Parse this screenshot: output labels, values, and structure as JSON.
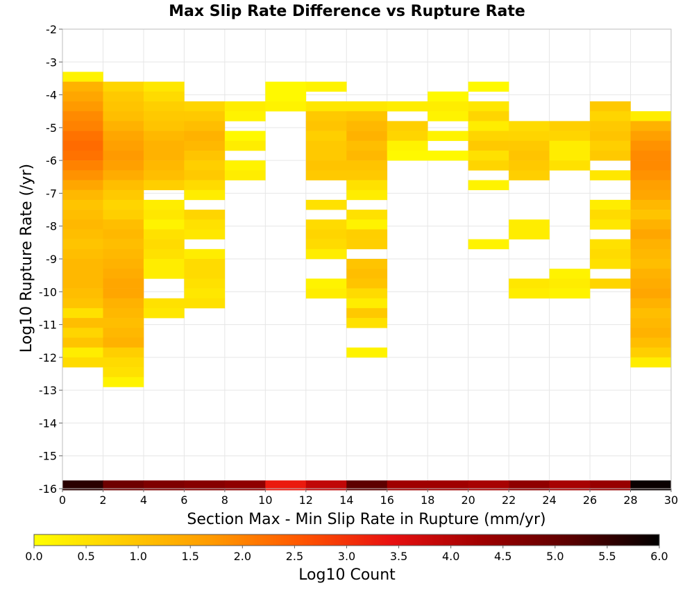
{
  "chart_data": {
    "type": "heatmap",
    "title": "Max Slip Rate Difference vs Rupture Rate",
    "xlabel": "Section Max - Min Slip Rate in Rupture (mm/yr)",
    "ylabel": "Log10 Rupture Rate (/yr)",
    "xlim": [
      0,
      30
    ],
    "ylim": [
      -16,
      -2
    ],
    "x_ticks": [
      "0",
      "2",
      "4",
      "6",
      "8",
      "10",
      "12",
      "14",
      "16",
      "18",
      "20",
      "22",
      "24",
      "26",
      "28",
      "30"
    ],
    "y_ticks": [
      "-2",
      "-3",
      "-4",
      "-5",
      "-6",
      "-7",
      "-8",
      "-9",
      "-10",
      "-11",
      "-12",
      "-13",
      "-14",
      "-15",
      "-16"
    ],
    "x_bin_width": 2,
    "y_bin_height": 0.3,
    "grid": true,
    "colorbar": {
      "label": "Log10 Count",
      "range": [
        0,
        6
      ],
      "ticks": [
        "0.0",
        "0.5",
        "1.0",
        "1.5",
        "2.0",
        "2.5",
        "3.0",
        "3.5",
        "4.0",
        "4.5",
        "5.0",
        "5.5",
        "6.0"
      ],
      "stops": [
        "#ffff00",
        "#ffcc00",
        "#ff9900",
        "#ff5500",
        "#e81010",
        "#a00000",
        "#5a0000",
        "#000000"
      ]
    },
    "columns": [
      {
        "x": 1,
        "cells": [
          [
            -3.45,
            0.2
          ],
          [
            -3.75,
            1.3
          ],
          [
            -4.05,
            1.5
          ],
          [
            -4.35,
            1.7
          ],
          [
            -4.65,
            1.9
          ],
          [
            -4.95,
            2.0
          ],
          [
            -5.25,
            2.2
          ],
          [
            -5.55,
            2.3
          ],
          [
            -5.85,
            2.2
          ],
          [
            -6.15,
            2.0
          ],
          [
            -6.45,
            1.8
          ],
          [
            -6.75,
            1.5
          ],
          [
            -7.05,
            1.2
          ],
          [
            -7.35,
            1.0
          ],
          [
            -7.65,
            1.1
          ],
          [
            -7.95,
            1.2
          ],
          [
            -8.25,
            1.1
          ],
          [
            -8.55,
            1.0
          ],
          [
            -8.85,
            1.1
          ],
          [
            -9.15,
            1.2
          ],
          [
            -9.45,
            1.2
          ],
          [
            -9.75,
            1.2
          ],
          [
            -10.05,
            1.1
          ],
          [
            -10.35,
            1.0
          ],
          [
            -10.65,
            0.5
          ],
          [
            -10.95,
            1.1
          ],
          [
            -11.25,
            0.7
          ],
          [
            -11.55,
            1.0
          ],
          [
            -11.85,
            0.3
          ],
          [
            -12.15,
            0.6
          ]
        ]
      },
      {
        "x": 3,
        "cells": [
          [
            -3.75,
            0.7
          ],
          [
            -4.05,
            0.9
          ],
          [
            -4.35,
            1.0
          ],
          [
            -4.65,
            1.1
          ],
          [
            -4.95,
            1.3
          ],
          [
            -5.25,
            1.5
          ],
          [
            -5.55,
            1.6
          ],
          [
            -5.85,
            1.7
          ],
          [
            -6.15,
            1.6
          ],
          [
            -6.45,
            1.4
          ],
          [
            -6.75,
            1.1
          ],
          [
            -7.05,
            0.9
          ],
          [
            -7.35,
            0.7
          ],
          [
            -7.65,
            0.8
          ],
          [
            -7.95,
            1.1
          ],
          [
            -8.25,
            1.2
          ],
          [
            -8.55,
            1.1
          ],
          [
            -8.85,
            1.2
          ],
          [
            -9.15,
            1.3
          ],
          [
            -9.45,
            1.4
          ],
          [
            -9.75,
            1.5
          ],
          [
            -10.05,
            1.5
          ],
          [
            -10.35,
            1.3
          ],
          [
            -10.65,
            1.2
          ],
          [
            -10.95,
            1.1
          ],
          [
            -11.25,
            1.2
          ],
          [
            -11.55,
            1.3
          ],
          [
            -11.85,
            0.8
          ],
          [
            -12.15,
            0.6
          ],
          [
            -12.45,
            0.5
          ],
          [
            -12.75,
            0.2
          ]
        ]
      },
      {
        "x": 5,
        "cells": [
          [
            -3.75,
            0.4
          ],
          [
            -4.05,
            0.6
          ],
          [
            -4.35,
            0.8
          ],
          [
            -4.65,
            0.9
          ],
          [
            -4.95,
            1.0
          ],
          [
            -5.25,
            1.2
          ],
          [
            -5.55,
            1.3
          ],
          [
            -5.85,
            1.3
          ],
          [
            -6.15,
            1.2
          ],
          [
            -6.45,
            1.1
          ],
          [
            -6.75,
            0.8
          ],
          [
            -7.35,
            0.3
          ],
          [
            -7.65,
            0.4
          ],
          [
            -7.95,
            0.2
          ],
          [
            -8.25,
            0.5
          ],
          [
            -8.55,
            0.6
          ],
          [
            -8.85,
            0.5
          ],
          [
            -9.15,
            0.3
          ],
          [
            -9.45,
            0.3
          ],
          [
            -10.35,
            0.5
          ],
          [
            -10.65,
            0.4
          ]
        ]
      },
      {
        "x": 7,
        "cells": [
          [
            -4.35,
            0.7
          ],
          [
            -4.65,
            0.9
          ],
          [
            -4.95,
            1.1
          ],
          [
            -5.25,
            1.3
          ],
          [
            -5.55,
            1.2
          ],
          [
            -5.85,
            1.0
          ],
          [
            -6.15,
            0.8
          ],
          [
            -6.45,
            0.9
          ],
          [
            -6.75,
            0.6
          ],
          [
            -7.05,
            0.3
          ],
          [
            -7.65,
            0.7
          ],
          [
            -7.95,
            0.5
          ],
          [
            -8.25,
            0.4
          ],
          [
            -8.85,
            0.3
          ],
          [
            -9.15,
            0.6
          ],
          [
            -9.45,
            0.6
          ],
          [
            -9.75,
            0.5
          ],
          [
            -10.05,
            0.4
          ],
          [
            -10.35,
            0.5
          ]
        ]
      },
      {
        "x": 9,
        "cells": [
          [
            -4.35,
            0.3
          ],
          [
            -4.65,
            0.2
          ],
          [
            -5.25,
            0.1
          ],
          [
            -5.55,
            0.3
          ],
          [
            -6.15,
            0.2
          ],
          [
            -6.45,
            0.3
          ]
        ]
      },
      {
        "x": 11,
        "cells": [
          [
            -3.75,
            0.1
          ],
          [
            -4.05,
            0.1
          ],
          [
            -4.35,
            0.2
          ]
        ]
      },
      {
        "x": 13,
        "cells": [
          [
            -3.75,
            0.2
          ],
          [
            -4.35,
            0.4
          ],
          [
            -4.65,
            0.9
          ],
          [
            -4.95,
            1.0
          ],
          [
            -5.25,
            0.8
          ],
          [
            -5.55,
            0.9
          ],
          [
            -5.85,
            0.9
          ],
          [
            -6.15,
            1.0
          ],
          [
            -6.45,
            0.9
          ],
          [
            -7.35,
            0.5
          ],
          [
            -7.95,
            0.6
          ],
          [
            -8.25,
            0.7
          ],
          [
            -8.55,
            0.6
          ],
          [
            -8.85,
            0.3
          ],
          [
            -9.75,
            0.2
          ],
          [
            -10.05,
            0.3
          ]
        ]
      },
      {
        "x": 15,
        "cells": [
          [
            -4.35,
            0.4
          ],
          [
            -4.65,
            1.0
          ],
          [
            -4.95,
            1.2
          ],
          [
            -5.25,
            1.3
          ],
          [
            -5.55,
            1.1
          ],
          [
            -5.85,
            1.2
          ],
          [
            -6.15,
            1.0
          ],
          [
            -6.45,
            0.9
          ],
          [
            -6.75,
            0.5
          ],
          [
            -7.05,
            0.3
          ],
          [
            -7.65,
            0.5
          ],
          [
            -7.95,
            0.2
          ],
          [
            -8.25,
            0.8
          ],
          [
            -8.55,
            0.8
          ],
          [
            -9.15,
            1.0
          ],
          [
            -9.45,
            1.1
          ],
          [
            -9.75,
            1.0
          ],
          [
            -10.05,
            0.6
          ],
          [
            -10.35,
            0.3
          ],
          [
            -10.65,
            0.9
          ],
          [
            -10.95,
            0.5
          ],
          [
            -11.85,
            0.2
          ]
        ]
      },
      {
        "x": 17,
        "cells": [
          [
            -4.35,
            0.3
          ],
          [
            -4.95,
            0.8
          ],
          [
            -5.25,
            0.7
          ],
          [
            -5.55,
            0.2
          ],
          [
            -5.85,
            0.1
          ]
        ]
      },
      {
        "x": 19,
        "cells": [
          [
            -4.05,
            0.1
          ],
          [
            -4.35,
            0.3
          ],
          [
            -4.65,
            0.2
          ],
          [
            -5.25,
            0.2
          ],
          [
            -5.85,
            0.1
          ]
        ]
      },
      {
        "x": 21,
        "cells": [
          [
            -3.75,
            0.1
          ],
          [
            -4.35,
            0.4
          ],
          [
            -4.65,
            0.7
          ],
          [
            -4.95,
            0.3
          ],
          [
            -5.25,
            0.7
          ],
          [
            -5.55,
            0.9
          ],
          [
            -5.85,
            0.5
          ],
          [
            -6.15,
            0.7
          ],
          [
            -6.75,
            0.2
          ],
          [
            -8.55,
            0.2
          ]
        ]
      },
      {
        "x": 23,
        "cells": [
          [
            -4.95,
            0.6
          ],
          [
            -5.25,
            0.7
          ],
          [
            -5.55,
            0.9
          ],
          [
            -5.85,
            1.0
          ],
          [
            -6.15,
            0.9
          ],
          [
            -6.45,
            0.8
          ],
          [
            -7.95,
            0.3
          ],
          [
            -8.25,
            0.3
          ],
          [
            -9.75,
            0.4
          ],
          [
            -10.05,
            0.3
          ]
        ]
      },
      {
        "x": 25,
        "cells": [
          [
            -4.95,
            0.8
          ],
          [
            -5.25,
            0.7
          ],
          [
            -5.55,
            0.3
          ],
          [
            -5.85,
            0.3
          ],
          [
            -6.15,
            0.5
          ],
          [
            -9.45,
            0.2
          ],
          [
            -9.75,
            0.3
          ],
          [
            -10.05,
            0.2
          ]
        ]
      },
      {
        "x": 27,
        "cells": [
          [
            -4.35,
            0.9
          ],
          [
            -4.65,
            0.7
          ],
          [
            -4.95,
            0.9
          ],
          [
            -5.25,
            1.0
          ],
          [
            -5.55,
            0.8
          ],
          [
            -5.85,
            0.9
          ],
          [
            -6.45,
            0.4
          ],
          [
            -7.35,
            0.3
          ],
          [
            -7.65,
            0.6
          ],
          [
            -7.95,
            0.4
          ],
          [
            -8.55,
            0.5
          ],
          [
            -8.85,
            0.6
          ],
          [
            -9.15,
            0.5
          ],
          [
            -9.75,
            0.7
          ]
        ]
      },
      {
        "x": 29,
        "cells": [
          [
            -4.65,
            0.3
          ],
          [
            -4.95,
            1.3
          ],
          [
            -5.25,
            1.6
          ],
          [
            -5.55,
            1.8
          ],
          [
            -5.85,
            1.9
          ],
          [
            -6.15,
            1.9
          ],
          [
            -6.45,
            1.8
          ],
          [
            -6.75,
            1.6
          ],
          [
            -7.05,
            1.5
          ],
          [
            -7.35,
            1.2
          ],
          [
            -7.65,
            1.0
          ],
          [
            -7.95,
            1.3
          ],
          [
            -8.25,
            1.5
          ],
          [
            -8.55,
            1.3
          ],
          [
            -8.85,
            1.2
          ],
          [
            -9.15,
            1.1
          ],
          [
            -9.45,
            1.3
          ],
          [
            -9.75,
            1.4
          ],
          [
            -10.05,
            1.5
          ],
          [
            -10.35,
            1.3
          ],
          [
            -10.65,
            1.1
          ],
          [
            -10.95,
            1.2
          ],
          [
            -11.25,
            1.3
          ],
          [
            -11.55,
            1.1
          ],
          [
            -11.85,
            0.8
          ],
          [
            -12.15,
            0.3
          ]
        ]
      }
    ],
    "bottom_row": {
      "y": -15.9,
      "values": [
        5.6,
        4.9,
        4.7,
        4.6,
        4.5,
        3.3,
        3.9,
        5.1,
        4.3,
        4.3,
        4.2,
        4.5,
        4.2,
        4.4,
        5.9
      ]
    }
  }
}
